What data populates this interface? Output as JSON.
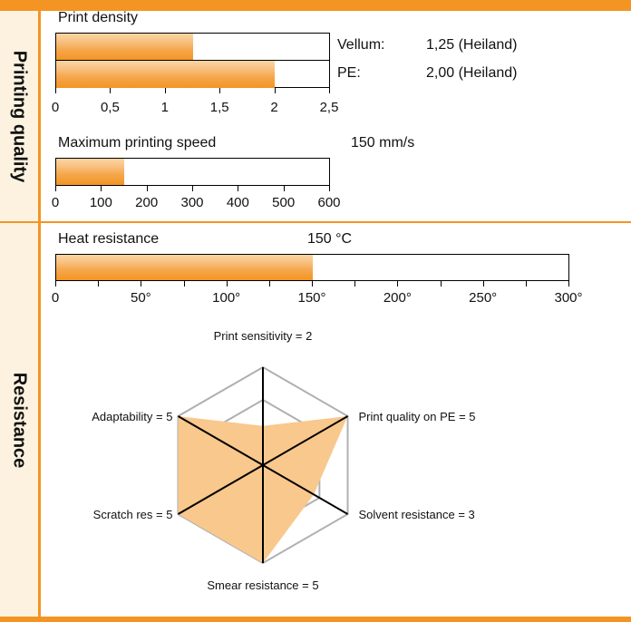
{
  "sidebar": {
    "section1_label": "Printing quality",
    "section2_label": "Resistance"
  },
  "colors": {
    "accent": "#f39423",
    "radar_fill": "#f9c88d",
    "sidebar_bg": "#fdf2e0"
  },
  "chart_data": [
    {
      "type": "bar",
      "title": "Print density",
      "categories": [
        "Vellum:",
        "PE:"
      ],
      "values": [
        1.25,
        2.0
      ],
      "value_labels": [
        "1,25 (Heiland)",
        "2,00 (Heiland)"
      ],
      "xlim": [
        0,
        2.5
      ],
      "ticks": [
        "0",
        "0,5",
        "1",
        "1,5",
        "2",
        "2,5"
      ]
    },
    {
      "type": "bar",
      "title": "Maximum printing speed",
      "value_label": "150 mm/s",
      "values": [
        150
      ],
      "xlim": [
        0,
        600
      ],
      "ticks": [
        "0",
        "100",
        "200",
        "300",
        "400",
        "500",
        "600"
      ]
    },
    {
      "type": "bar",
      "title": "Heat resistance",
      "value_label": "150 °C",
      "values": [
        150
      ],
      "xlim": [
        0,
        300
      ],
      "ticks": [
        "0",
        "50°",
        "100°",
        "150°",
        "200°",
        "250°",
        "300°"
      ]
    },
    {
      "type": "radar",
      "max": 5,
      "axes": [
        {
          "label": "Print sensitivity = 2",
          "value": 2
        },
        {
          "label": "Print quality on PE = 5",
          "value": 5
        },
        {
          "label": "Solvent resistance = 3",
          "value": 3
        },
        {
          "label": "Smear resistance = 5",
          "value": 5
        },
        {
          "label": "Scratch res = 5",
          "value": 5
        },
        {
          "label": "Adaptability = 5",
          "value": 5
        }
      ]
    }
  ]
}
